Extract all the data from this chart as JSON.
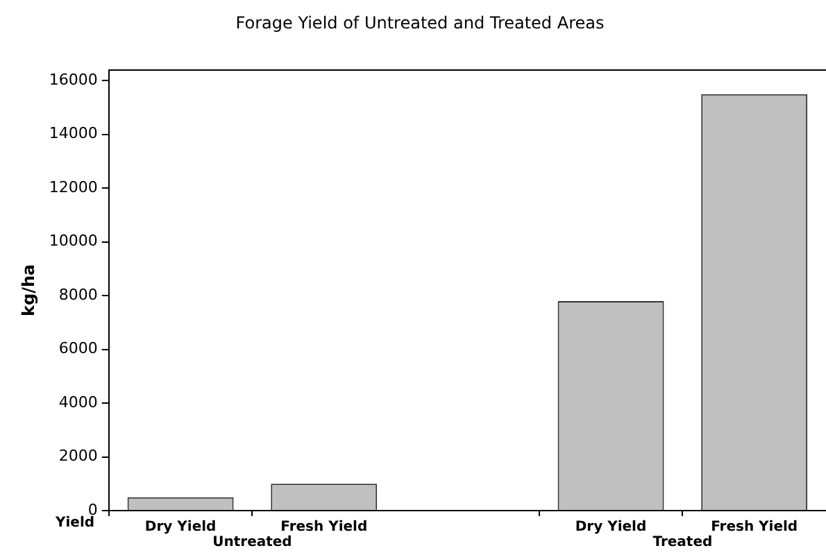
{
  "chart_data": {
    "type": "bar",
    "title": "Forage Yield of Untreated and Treated Areas",
    "xlabel": "Yield",
    "ylabel": "kg/ha",
    "categories": [
      "Dry Yield",
      "Fresh Yield",
      null,
      "Dry Yield",
      "Fresh Yield"
    ],
    "values": [
      500,
      1000,
      null,
      7800,
      15500
    ],
    "color": "#c0c0c0",
    "ylim": [
      0,
      16400
    ],
    "yticks": [
      0,
      2000,
      4000,
      6000,
      8000,
      10000,
      12000,
      14000,
      16000
    ],
    "grid": false,
    "annotations": [
      "Untreated",
      "Treated"
    ]
  }
}
